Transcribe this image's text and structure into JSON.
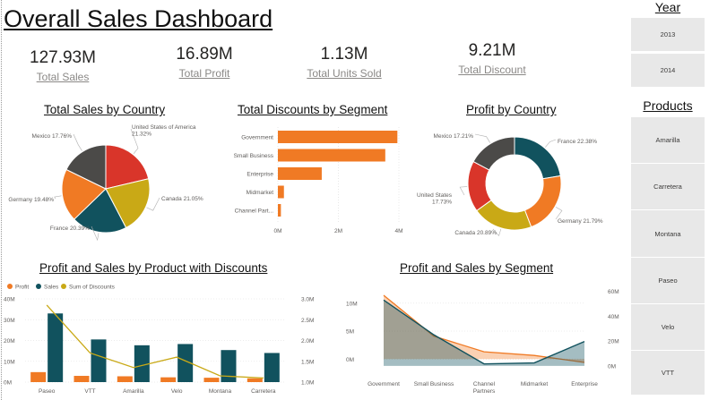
{
  "dashboard": {
    "title": "Overall Sales Dashboard"
  },
  "kpis": [
    {
      "value": "127.93M",
      "label": "Total Sales"
    },
    {
      "value": "16.89M",
      "label": "Total Profit"
    },
    {
      "value": "1.13M",
      "label": "Total Units Sold"
    },
    {
      "value": "9.21M",
      "label": "Total Discount"
    }
  ],
  "slicers": {
    "year": {
      "title": "Year",
      "items": [
        "2013",
        "2014"
      ]
    },
    "products": {
      "title": "Products",
      "items": [
        "Amarilla",
        "Carretera",
        "Montana",
        "Paseo",
        "Velo",
        "VTT"
      ]
    }
  },
  "colors": {
    "orange": "#f07a24",
    "teal": "#11525e",
    "red": "#d9352a",
    "yellow": "#c9a916",
    "dark": "#4b4a48"
  },
  "chart_data": [
    {
      "id": "sales_by_country",
      "type": "pie",
      "title": "Total Sales by Country",
      "slices": [
        {
          "name": "United States of America",
          "pct": 21.32,
          "pct_label": "21.32%",
          "color": "#d9352a"
        },
        {
          "name": "Canada",
          "pct": 21.05,
          "pct_label": "21.05%",
          "color": "#c9a916"
        },
        {
          "name": "France",
          "pct": 20.39,
          "pct_label": "20.39%",
          "color": "#11525e"
        },
        {
          "name": "Germany",
          "pct": 19.48,
          "pct_label": "19.48%",
          "color": "#f07a24"
        },
        {
          "name": "Mexico",
          "pct": 17.76,
          "pct_label": "17.76%",
          "color": "#4b4a48"
        }
      ]
    },
    {
      "id": "discounts_by_segment",
      "type": "bar",
      "orientation": "horizontal",
      "title": "Total Discounts by Segment",
      "categories": [
        "Government",
        "Small Business",
        "Enterprise",
        "Midmarket",
        "Channel Part..."
      ],
      "values": [
        3.95,
        3.55,
        1.45,
        0.2,
        0.1
      ],
      "xticks": [
        "0M",
        "2M",
        "4M"
      ],
      "xlim": [
        0,
        4
      ],
      "color": "#f07a24"
    },
    {
      "id": "profit_by_country",
      "type": "pie",
      "style": "donut",
      "title": "Profit by Country",
      "slices": [
        {
          "name": "France",
          "pct": 22.38,
          "pct_label": "22.38%",
          "color": "#11525e"
        },
        {
          "name": "Germany",
          "pct": 21.79,
          "pct_label": "21.79%",
          "color": "#f07a24"
        },
        {
          "name": "Canada",
          "pct": 20.89,
          "pct_label": "20.89%",
          "color": "#c9a916"
        },
        {
          "name": "United States",
          "pct": 17.73,
          "pct_label": "17.73%",
          "color": "#d9352a"
        },
        {
          "name": "Mexico",
          "pct": 17.21,
          "pct_label": "17.21%",
          "color": "#4b4a48"
        }
      ]
    },
    {
      "id": "profit_sales_by_product",
      "type": "bar",
      "title": "Profit and Sales by Product with Discounts",
      "legend": [
        "Profit",
        "Sales",
        "Sum of Discounts"
      ],
      "categories": [
        "Paseo",
        "VTT",
        "Amarilla",
        "Velo",
        "Montana",
        "Carretera"
      ],
      "series": [
        {
          "name": "Profit",
          "type": "bar",
          "axis": "left",
          "color": "#f07a24",
          "values": [
            4.8,
            3.0,
            2.8,
            2.3,
            2.1,
            1.8
          ]
        },
        {
          "name": "Sales",
          "type": "bar",
          "axis": "left",
          "color": "#11525e",
          "values": [
            33.0,
            20.5,
            17.7,
            18.3,
            15.4,
            14.0
          ]
        },
        {
          "name": "Sum of Discounts",
          "type": "line",
          "axis": "right",
          "color": "#c9a916",
          "values": [
            2.85,
            1.7,
            1.35,
            1.6,
            1.15,
            1.1
          ]
        }
      ],
      "ylim": [
        0,
        40
      ],
      "y2lim": [
        1.0,
        3.0
      ],
      "yticks": [
        "0M",
        "10M",
        "20M",
        "30M",
        "40M"
      ],
      "y2ticks": [
        "1.0M",
        "1.5M",
        "2.0M",
        "2.5M",
        "3.0M"
      ]
    },
    {
      "id": "profit_sales_by_segment",
      "type": "area",
      "title": "Profit and Sales by Segment",
      "categories": [
        "Government",
        "Small Business",
        "Channel Partners",
        "Midmarket",
        "Enterprise"
      ],
      "series": [
        {
          "name": "Profit",
          "axis": "left",
          "color": "#f07a24",
          "values": [
            11.4,
            4.1,
            1.3,
            0.65,
            -0.6
          ]
        },
        {
          "name": "Sales",
          "axis": "right",
          "color": "#11525e",
          "values": [
            53,
            25,
            1.6,
            2.4,
            19.6
          ]
        }
      ],
      "ylim": [
        -3,
        13
      ],
      "y2lim": [
        -8,
        64
      ],
      "yticks": [
        "0M",
        "5M",
        "10M"
      ],
      "y2ticks": [
        "0M",
        "20M",
        "40M",
        "60M"
      ]
    }
  ]
}
